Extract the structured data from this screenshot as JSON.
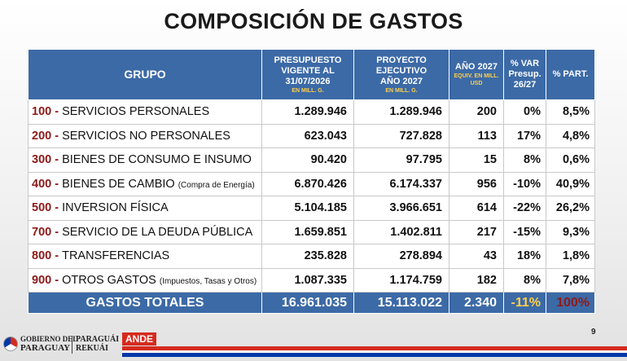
{
  "title": "COMPOSICIÓN DE GASTOS",
  "headers": {
    "grupo": "GRUPO",
    "presupuesto": [
      "PRESUPUESTO",
      "VIGENTE AL",
      "31/07/2026"
    ],
    "presupuesto_sub": "EN MILL. G.",
    "proyecto": [
      "PROYECTO",
      "EJECUTIVO",
      "AÑO 2027"
    ],
    "proyecto_sub": "EN MILL. G.",
    "anio": "AÑO 2027",
    "anio_sub": "EQUIV. EN MILL. USD",
    "var": [
      "% VAR",
      "Presup.",
      "26/27"
    ],
    "part": "% PART."
  },
  "rows": [
    {
      "code": "100",
      "label": "SERVICIOS PERSONALES",
      "detail": "",
      "presupuesto": "1.289.946",
      "proyecto": "1.289.946",
      "usd": "200",
      "var": "0%",
      "part": "8,5%"
    },
    {
      "code": "200",
      "label": "SERVICIOS NO PERSONALES",
      "detail": "",
      "presupuesto": "623.043",
      "proyecto": "727.828",
      "usd": "113",
      "var": "17%",
      "part": "4,8%"
    },
    {
      "code": "300",
      "label": "BIENES DE CONSUMO E INSUMO",
      "detail": "",
      "presupuesto": "90.420",
      "proyecto": "97.795",
      "usd": "15",
      "var": "8%",
      "part": "0,6%"
    },
    {
      "code": "400",
      "label": "BIENES DE CAMBIO",
      "detail": "(Compra de Energía)",
      "presupuesto": "6.870.426",
      "proyecto": "6.174.337",
      "usd": "956",
      "var": "-10%",
      "part": "40,9%"
    },
    {
      "code": "500",
      "label": "INVERSION FÍSICA",
      "detail": "",
      "presupuesto": "5.104.185",
      "proyecto": "3.966.651",
      "usd": "614",
      "var": "-22%",
      "part": "26,2%"
    },
    {
      "code": "700",
      "label": "SERVICIO DE LA DEUDA PÚBLICA",
      "detail": "",
      "presupuesto": "1.659.851",
      "proyecto": "1.402.811",
      "usd": "217",
      "var": "-15%",
      "part": "9,3%"
    },
    {
      "code": "800",
      "label": "TRANSFERENCIAS",
      "detail": "",
      "presupuesto": "235.828",
      "proyecto": "278.894",
      "usd": "43",
      "var": "18%",
      "part": "1,8%"
    },
    {
      "code": "900",
      "label": "OTROS GASTOS",
      "detail": "(Impuestos, Tasas y Otros)",
      "presupuesto": "1.087.335",
      "proyecto": "1.174.759",
      "usd": "182",
      "var": "8%",
      "part": "7,8%"
    }
  ],
  "total": {
    "label": "GASTOS TOTALES",
    "presupuesto": "16.961.035",
    "proyecto": "15.113.022",
    "usd": "2.340",
    "var": "-11%",
    "part": "100%"
  },
  "page_number": "9",
  "footer": {
    "gov_line1": "GOBIERNO DEL",
    "gov_line2": "PARAGUAY",
    "gov_line3": "PARAGUÁI",
    "gov_line4": "REKUÁI",
    "ande": "ANDE"
  },
  "colors": {
    "header_bg": "#3c6aa6",
    "code_red": "#8e1a1a",
    "var_orange": "#e3a12a",
    "part_red": "#b01c1c",
    "sub_yellow": "#ffd04a"
  }
}
